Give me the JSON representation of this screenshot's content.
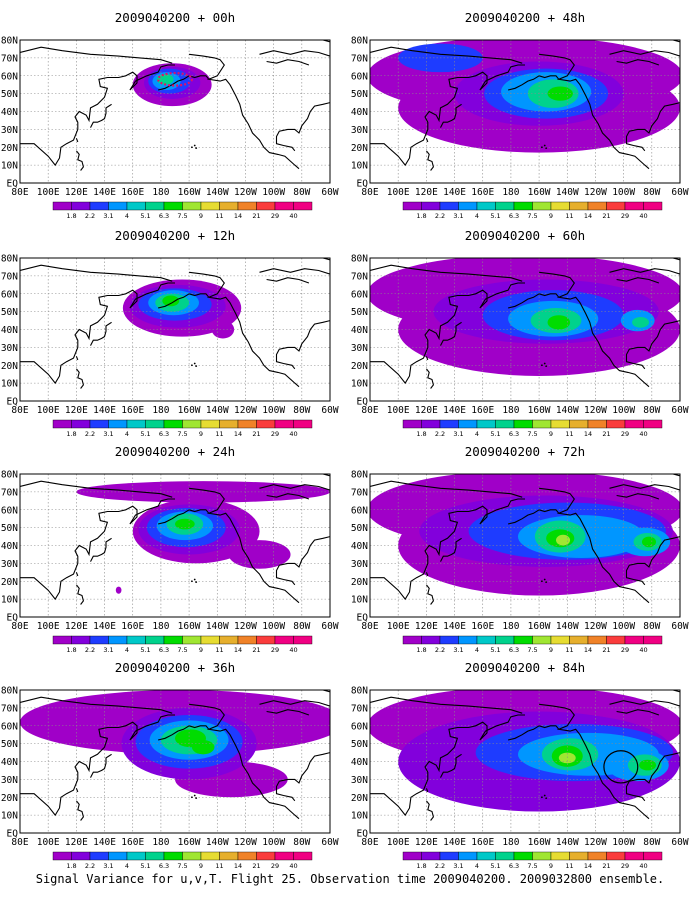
{
  "figure": {
    "caption": "Signal Variance for u,v,T. Flight 25. Observation time 2009040200. 2009032800 ensemble."
  },
  "axes": {
    "lon_ticks": [
      "80E",
      "100E",
      "120E",
      "140E",
      "160E",
      "180",
      "160W",
      "140W",
      "120W",
      "100W",
      "80W",
      "60W"
    ],
    "lat_ticks": [
      "EQ",
      "10N",
      "20N",
      "30N",
      "40N",
      "50N",
      "60N",
      "70N",
      "80N"
    ]
  },
  "colorbar": {
    "labels": [
      "1.8",
      "2.2",
      "3.1",
      "4",
      "5.1",
      "6.3",
      "7.5",
      "9",
      "11",
      "14",
      "21",
      "29",
      "40"
    ],
    "colors": [
      "#a000c8",
      "#8200dc",
      "#1e3cff",
      "#0096ff",
      "#00c8c8",
      "#00d28c",
      "#00dc00",
      "#a0e632",
      "#e6dc32",
      "#e6af2d",
      "#f08228",
      "#fa3c3c",
      "#f00082"
    ]
  },
  "panels": [
    {
      "title": "2009040200 + 00h",
      "forecast_hour": 0,
      "has_flight_track": true,
      "circle": false
    },
    {
      "title": "2009040200 + 48h",
      "forecast_hour": 48,
      "has_flight_track": false,
      "circle": false
    },
    {
      "title": "2009040200 + 12h",
      "forecast_hour": 12,
      "has_flight_track": false,
      "circle": false
    },
    {
      "title": "2009040200 + 60h",
      "forecast_hour": 60,
      "has_flight_track": false,
      "circle": false
    },
    {
      "title": "2009040200 + 24h",
      "forecast_hour": 24,
      "has_flight_track": false,
      "circle": false
    },
    {
      "title": "2009040200 + 72h",
      "forecast_hour": 72,
      "has_flight_track": false,
      "circle": false
    },
    {
      "title": "2009040200 + 36h",
      "forecast_hour": 36,
      "has_flight_track": false,
      "circle": false
    },
    {
      "title": "2009040200 + 84h",
      "forecast_hour": 84,
      "has_flight_track": false,
      "circle": true
    }
  ]
}
